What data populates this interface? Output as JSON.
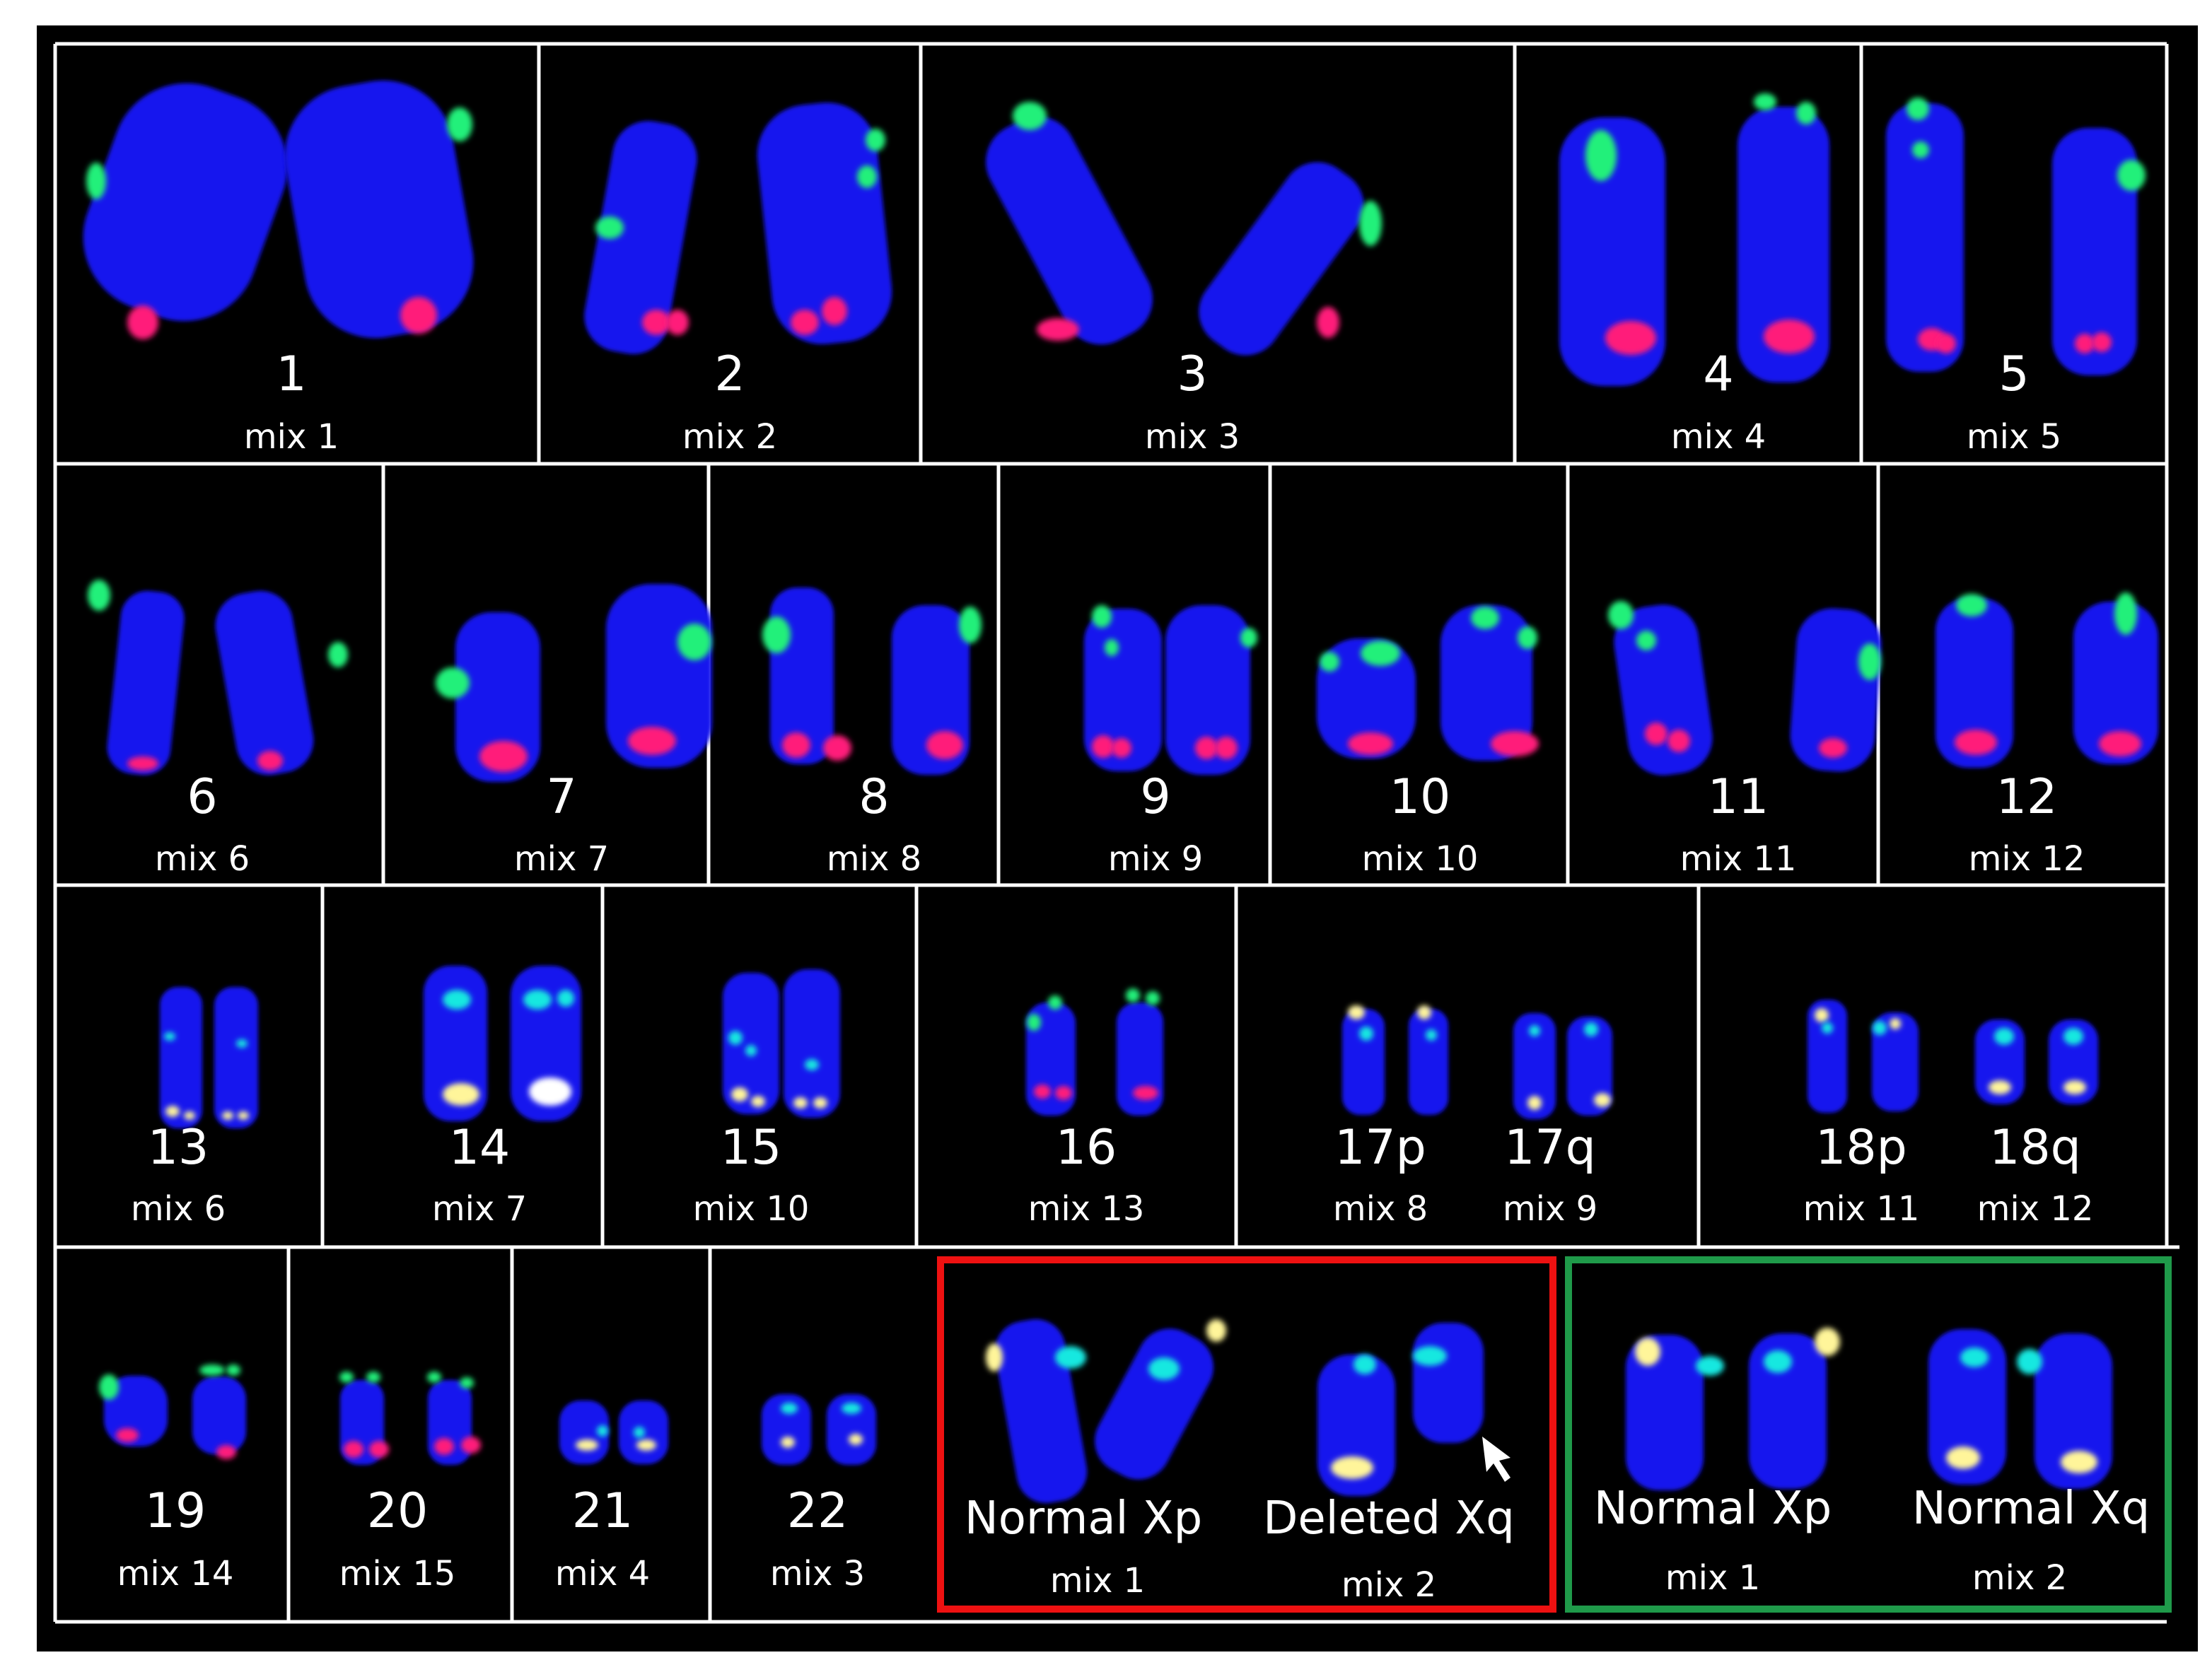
{
  "colors": {
    "background": "#000000",
    "divider": "#ffffff",
    "chromosome": "#1212ee",
    "probe_green": "#22f07a",
    "probe_red": "#ff1a7a",
    "probe_cyan": "#19e8e0",
    "probe_yellow": "#fff59a",
    "abnormal_box": "#ee1111",
    "normal_box": "#1f9a4a"
  },
  "rows": [
    {
      "panels": [
        {
          "number": "1",
          "mix": "mix 1"
        },
        {
          "number": "2",
          "mix": "mix 2"
        },
        {
          "number": "3",
          "mix": "mix 3"
        },
        {
          "number": "4",
          "mix": "mix 4"
        },
        {
          "number": "5",
          "mix": "mix 5"
        }
      ]
    },
    {
      "panels": [
        {
          "number": "6",
          "mix": "mix 6"
        },
        {
          "number": "7",
          "mix": "mix 7"
        },
        {
          "number": "8",
          "mix": "mix 8"
        },
        {
          "number": "9",
          "mix": "mix 9"
        },
        {
          "number": "10",
          "mix": "mix 10"
        },
        {
          "number": "11",
          "mix": "mix 11"
        },
        {
          "number": "12",
          "mix": "mix 12"
        }
      ]
    },
    {
      "panels": [
        {
          "number": "13",
          "mix": "mix 6"
        },
        {
          "number": "14",
          "mix": "mix 7"
        },
        {
          "number": "15",
          "mix": "mix 10"
        },
        {
          "number": "16",
          "mix": "mix 13"
        },
        {
          "number": "17p",
          "mix": "mix 8",
          "number2": "17q",
          "mix2": "mix 9"
        },
        {
          "number": "18p",
          "mix": "mix 11",
          "number2": "18q",
          "mix2": "mix 12"
        }
      ]
    },
    {
      "panels": [
        {
          "number": "19",
          "mix": "mix 14"
        },
        {
          "number": "20",
          "mix": "mix 15"
        },
        {
          "number": "21",
          "mix": "mix 4"
        },
        {
          "number": "22",
          "mix": "mix 3"
        }
      ]
    }
  ],
  "x_panels": [
    {
      "status": "abnormal",
      "left_label": "Normal Xp",
      "left_mix": "mix 1",
      "right_label": "Deleted Xq",
      "right_mix": "mix 2"
    },
    {
      "status": "normal",
      "left_label": "Normal Xp",
      "left_mix": "mix 1",
      "right_label": "Normal Xq",
      "right_mix": "mix 2"
    }
  ],
  "icons": [
    "arrow-pointer-icon"
  ]
}
